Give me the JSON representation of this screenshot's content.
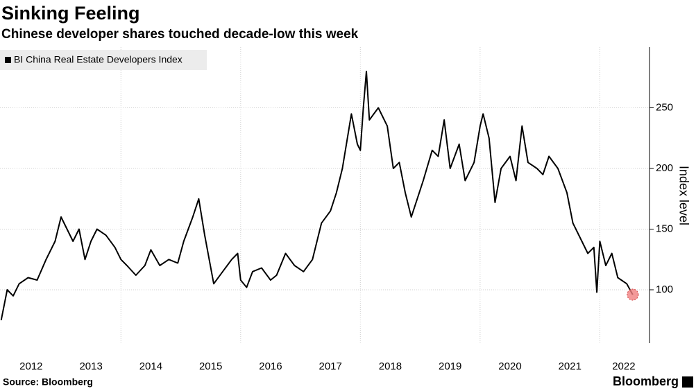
{
  "chart_data": {
    "type": "line",
    "title": "Sinking Feeling",
    "subtitle": "Chinese developer shares touched decade-low this week",
    "y_label": "Index level",
    "source": "Source: Bloomberg",
    "brand": "Bloomberg",
    "series": [
      {
        "name": "BI China Real Estate Developers Index",
        "color": "#000000",
        "x": [
          2012.0,
          2012.1,
          2012.2,
          2012.3,
          2012.45,
          2012.6,
          2012.75,
          2012.9,
          2013.0,
          2013.1,
          2013.2,
          2013.3,
          2013.4,
          2013.5,
          2013.6,
          2013.75,
          2013.9,
          2014.0,
          2014.1,
          2014.25,
          2014.4,
          2014.5,
          2014.65,
          2014.8,
          2014.95,
          2015.05,
          2015.2,
          2015.3,
          2015.4,
          2015.55,
          2015.7,
          2015.85,
          2015.95,
          2016.0,
          2016.1,
          2016.2,
          2016.35,
          2016.5,
          2016.6,
          2016.75,
          2016.9,
          2017.05,
          2017.2,
          2017.35,
          2017.5,
          2017.6,
          2017.7,
          2017.85,
          2017.95,
          2018.0,
          2018.05,
          2018.1,
          2018.15,
          2018.3,
          2018.45,
          2018.55,
          2018.65,
          2018.75,
          2018.85,
          2018.95,
          2019.05,
          2019.2,
          2019.3,
          2019.4,
          2019.5,
          2019.65,
          2019.75,
          2019.9,
          2020.0,
          2020.05,
          2020.15,
          2020.25,
          2020.35,
          2020.5,
          2020.6,
          2020.7,
          2020.8,
          2020.95,
          2021.05,
          2021.15,
          2021.3,
          2021.45,
          2021.55,
          2021.7,
          2021.8,
          2021.9,
          2021.95,
          2022.0,
          2022.1,
          2022.2,
          2022.3,
          2022.45,
          2022.55
        ],
        "values": [
          75,
          100,
          95,
          105,
          110,
          108,
          125,
          140,
          160,
          150,
          140,
          150,
          125,
          140,
          150,
          145,
          135,
          125,
          120,
          112,
          120,
          133,
          120,
          125,
          122,
          140,
          160,
          175,
          145,
          105,
          115,
          125,
          130,
          108,
          102,
          115,
          118,
          108,
          112,
          130,
          120,
          115,
          125,
          155,
          165,
          180,
          200,
          245,
          220,
          215,
          250,
          280,
          240,
          250,
          235,
          200,
          205,
          180,
          160,
          175,
          190,
          215,
          210,
          240,
          200,
          220,
          190,
          205,
          235,
          245,
          225,
          172,
          200,
          210,
          190,
          235,
          205,
          200,
          195,
          210,
          200,
          180,
          155,
          140,
          130,
          135,
          98,
          140,
          120,
          130,
          110,
          105,
          96
        ]
      }
    ],
    "xlim": [
      2011.98,
      2022.83
    ],
    "xticks": [
      {
        "value": 2012.5,
        "label": "2012"
      },
      {
        "value": 2013.5,
        "label": "2013"
      },
      {
        "value": 2014.5,
        "label": "2014"
      },
      {
        "value": 2015.5,
        "label": "2015"
      },
      {
        "value": 2016.5,
        "label": "2016"
      },
      {
        "value": 2017.5,
        "label": "2017"
      },
      {
        "value": 2018.5,
        "label": "2018"
      },
      {
        "value": 2019.5,
        "label": "2019"
      },
      {
        "value": 2020.5,
        "label": "2020"
      },
      {
        "value": 2021.5,
        "label": "2021"
      },
      {
        "value": 2022.4,
        "label": "2022"
      }
    ],
    "xgrid": [
      2014,
      2016,
      2018,
      2020,
      2022
    ],
    "ylim": [
      56,
      300
    ],
    "yticks": [
      100,
      150,
      200,
      250
    ],
    "grid": true,
    "highlight_color": "#f08080"
  }
}
